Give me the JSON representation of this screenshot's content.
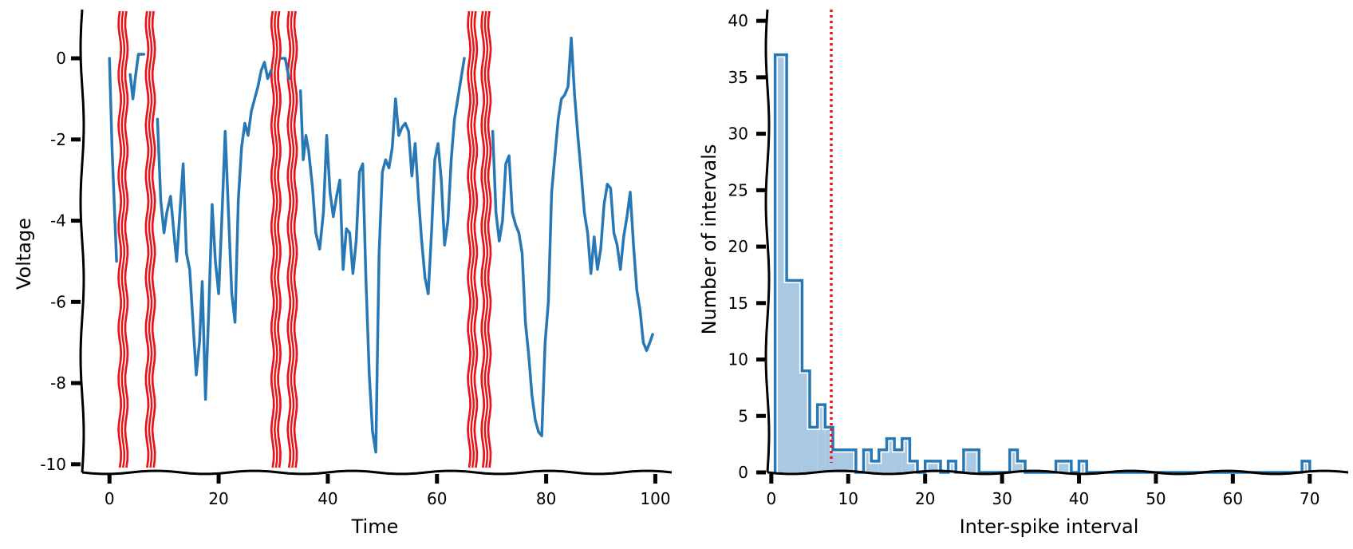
{
  "chart_data": [
    {
      "type": "line",
      "name": "voltage-trace",
      "xlabel": "Time",
      "ylabel": "Voltage",
      "xlim": [
        -5,
        103
      ],
      "ylim": [
        -10.2,
        1.2
      ],
      "xticks": [
        0,
        20,
        40,
        60,
        80,
        100
      ],
      "yticks": [
        0,
        -2,
        -4,
        -6,
        -8,
        -10
      ],
      "xtick_labels": [
        "0",
        "20",
        "40",
        "60",
        "80",
        "100"
      ],
      "ytick_labels": [
        "0",
        "-2",
        "-4",
        "-6",
        "-8",
        "-10"
      ],
      "line_color": "#2878b5",
      "spike_color": "#e8141a",
      "spike_times": [
        2.5,
        7.5,
        30.5,
        33.5,
        66.5,
        69.0
      ],
      "series": [
        {
          "name": "segment-1",
          "x": [
            0,
            0.5,
            1,
            1.3
          ],
          "y": [
            0,
            -2.3,
            -4,
            -5
          ]
        },
        {
          "name": "segment-2",
          "x": [
            3.8,
            4.3,
            4.8,
            5.3,
            6.3
          ],
          "y": [
            -0.4,
            -1,
            -0.4,
            0.1,
            0.1
          ]
        },
        {
          "name": "segment-3",
          "x": [
            8.8,
            9.4,
            10,
            10.5,
            11.2,
            11.8,
            12.3,
            12.8,
            13.5,
            14.1,
            14.7,
            15.3,
            15.9,
            16.5,
            17,
            17.6,
            18.2,
            18.8,
            19.4,
            20,
            20.6,
            21.2,
            21.8,
            22.4,
            23,
            23.6,
            24.2,
            24.8,
            25.4,
            26,
            26.6,
            27.2,
            27.8,
            28.4,
            29,
            29.6
          ],
          "y": [
            -1.5,
            -3.5,
            -4.3,
            -3.8,
            -3.4,
            -4.3,
            -5,
            -4,
            -2.6,
            -4.8,
            -5.2,
            -6.5,
            -7.8,
            -7,
            -5.5,
            -8.4,
            -6.2,
            -3.6,
            -5,
            -5.8,
            -3.9,
            -1.8,
            -3.8,
            -5.8,
            -6.5,
            -3.5,
            -2.2,
            -1.6,
            -1.9,
            -1.3,
            -1,
            -0.7,
            -0.3,
            -0.1,
            -0.5,
            -0.3
          ]
        },
        {
          "name": "segment-4",
          "x": [
            31.5,
            32.2,
            32.9
          ],
          "y": [
            0,
            0,
            -0.5
          ]
        },
        {
          "name": "segment-5",
          "x": [
            35,
            35.5,
            36,
            36.5,
            37.2,
            37.8,
            38.5,
            39.2,
            39.8,
            40.4,
            41,
            41.6,
            42.2,
            42.8,
            43.4,
            44,
            44.6,
            45.2,
            45.8,
            46.4,
            47,
            47.6,
            48.2,
            48.8,
            49.4,
            50,
            50.6,
            51.2,
            51.8,
            52.4,
            53,
            53.6,
            54.2,
            54.8,
            55.4,
            56,
            56.6,
            57.2,
            57.8,
            58.4,
            59,
            59.6,
            60.2,
            60.8,
            61.4,
            62,
            62.6,
            63.2,
            63.8,
            64.4,
            65
          ],
          "y": [
            -0.8,
            -2.5,
            -1.9,
            -2.3,
            -3.2,
            -4.3,
            -4.7,
            -3.8,
            -1.9,
            -3.3,
            -3.9,
            -3.4,
            -3,
            -5.2,
            -4.2,
            -4.3,
            -5.3,
            -4.5,
            -2.8,
            -2.6,
            -5.5,
            -7.8,
            -9.2,
            -9.7,
            -4.8,
            -2.8,
            -2.5,
            -2.7,
            -2.2,
            -1,
            -1.9,
            -1.7,
            -1.6,
            -1.8,
            -2.9,
            -2.1,
            -3.4,
            -4.5,
            -5.4,
            -5.8,
            -4.3,
            -2.5,
            -2.1,
            -3,
            -4.6,
            -4,
            -2.5,
            -1.5,
            -1,
            -0.5,
            0
          ]
        },
        {
          "name": "segment-6",
          "x": [
            70.2,
            70.8,
            71.4,
            72,
            72.6,
            73.2,
            73.8,
            74.4,
            75,
            75.6,
            76.2,
            76.8,
            77.4,
            78,
            78.6,
            79.2,
            79.8,
            80.4,
            81,
            81.6,
            82.2,
            82.8,
            83.4,
            84,
            84.6,
            85.2,
            85.8,
            86.4,
            87,
            87.6,
            88.2,
            88.8,
            89.4,
            90,
            90.6,
            91.2,
            91.8,
            92.4,
            93,
            93.6,
            94.2,
            94.8,
            95.4,
            96,
            96.6,
            97.2,
            97.8,
            98.4,
            99,
            99.5
          ],
          "y": [
            -1.8,
            -3.8,
            -4.5,
            -4,
            -2.6,
            -2.4,
            -3.8,
            -4.1,
            -4.3,
            -4.8,
            -6.5,
            -7.3,
            -8.3,
            -8.9,
            -9.2,
            -9.3,
            -7,
            -6,
            -3.3,
            -2.4,
            -1.5,
            -1,
            -0.9,
            -0.7,
            0.5,
            -0.9,
            -1.9,
            -2.8,
            -3.8,
            -4.3,
            -5.3,
            -4.4,
            -5.2,
            -4.7,
            -3.6,
            -3.1,
            -3.2,
            -4.3,
            -4.6,
            -5.2,
            -4.4,
            -3.9,
            -3.3,
            -4.6,
            -5.7,
            -6.2,
            -7,
            -7.2,
            -7,
            -6.8
          ]
        }
      ]
    },
    {
      "type": "histogram",
      "name": "isi-histogram",
      "xlabel": "Inter-spike interval",
      "ylabel": "Number of intervals",
      "xlim": [
        -0.5,
        75
      ],
      "ylim": [
        0,
        41
      ],
      "xticks": [
        0,
        10,
        20,
        30,
        40,
        50,
        60,
        70
      ],
      "yticks": [
        0,
        5,
        10,
        15,
        20,
        25,
        30,
        35,
        40
      ],
      "xtick_labels": [
        "0",
        "10",
        "20",
        "30",
        "40",
        "50",
        "60",
        "70"
      ],
      "ytick_labels": [
        "0",
        "5",
        "10",
        "15",
        "20",
        "25",
        "30",
        "35",
        "40"
      ],
      "bin_edges": [
        0.5,
        2,
        4,
        5,
        6,
        7,
        8,
        11,
        12,
        13,
        14,
        15,
        16,
        17,
        18,
        19,
        20,
        21,
        22,
        23,
        24,
        25,
        26,
        27,
        28,
        31,
        32,
        33,
        34,
        37,
        38,
        39,
        40,
        41,
        69,
        70
      ],
      "counts": [
        37,
        17,
        9,
        4,
        6,
        4,
        2,
        0,
        2,
        1,
        2,
        3,
        2,
        3,
        1,
        0,
        1,
        1,
        0,
        1,
        0,
        2,
        2,
        0,
        0,
        2,
        1,
        0,
        0,
        1,
        1,
        0,
        1,
        0,
        1
      ],
      "fill_color": "#a9c9e3",
      "edge_color": "#2878b5",
      "threshold": 7.8,
      "threshold_color": "#e8141a"
    }
  ]
}
